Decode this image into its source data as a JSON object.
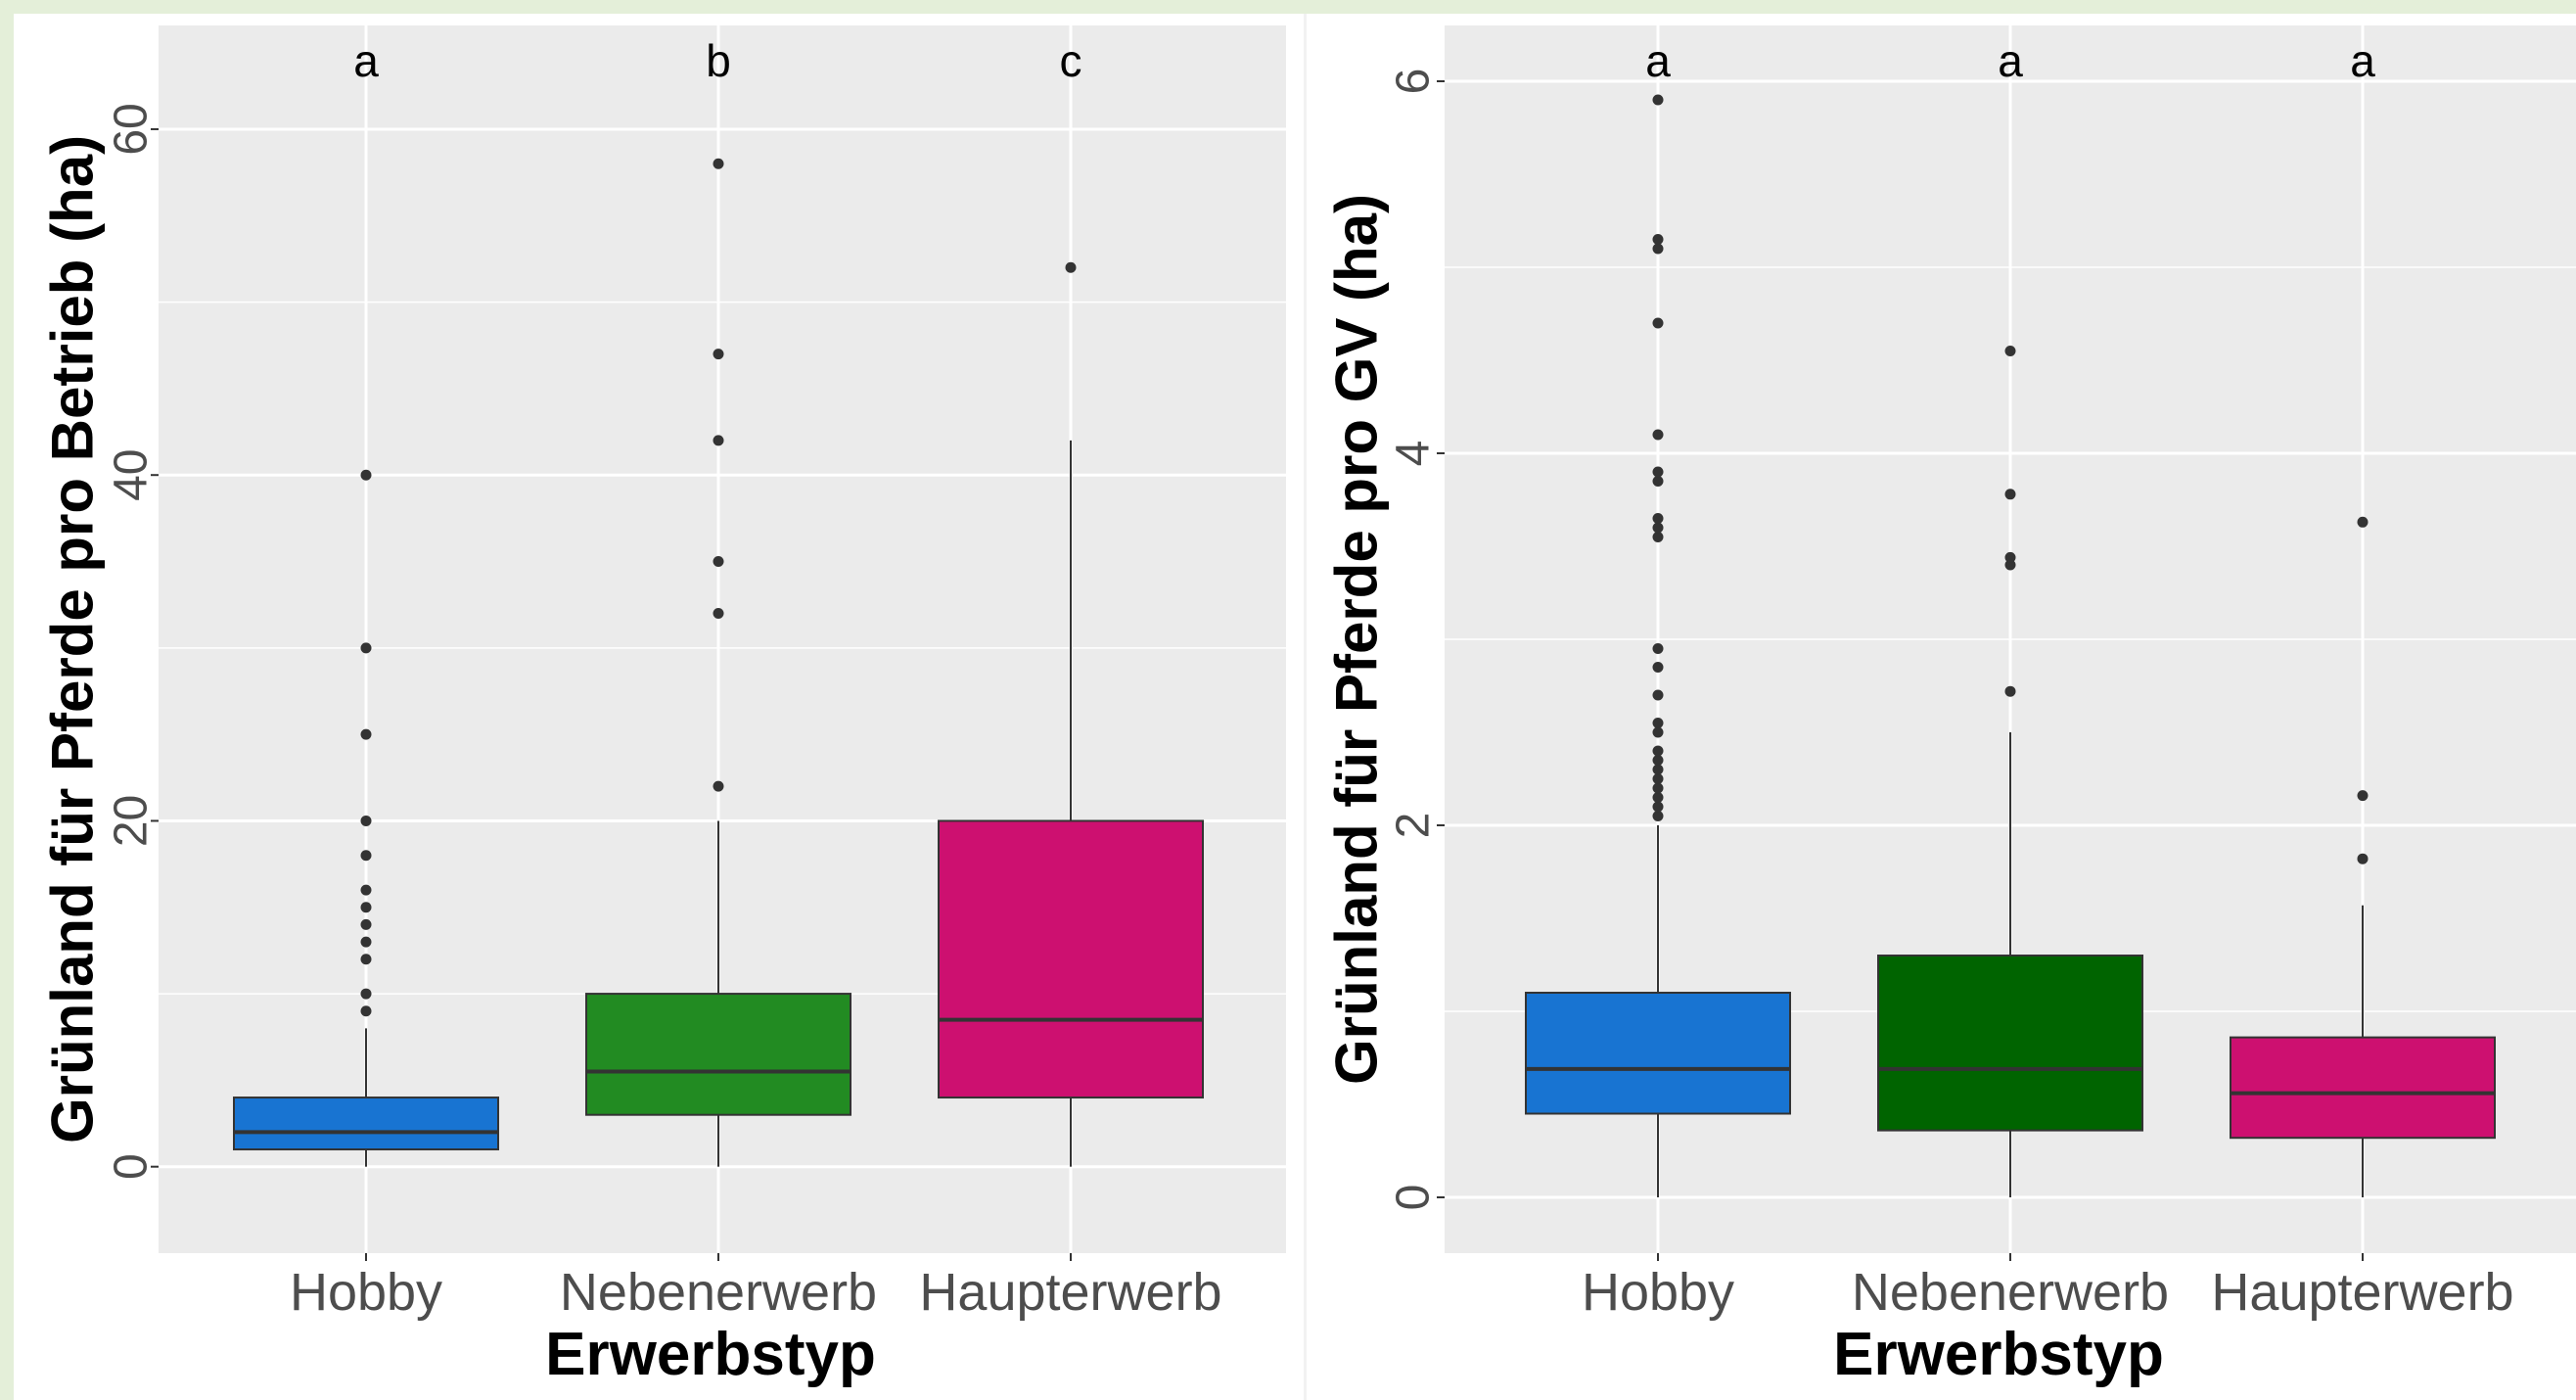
{
  "chart_data": [
    {
      "type": "boxplot",
      "title": "",
      "xlabel": "Erwerbstyp",
      "ylabel": "Grünland für Pferde pro Betrieb (ha)",
      "ylim": [
        -5,
        66
      ],
      "yticks": [
        0,
        20,
        40,
        60
      ],
      "grid": true,
      "categories": [
        "Hobby",
        "Nebenerwerb",
        "Haupterwerb"
      ],
      "group_letters": [
        "a",
        "b",
        "c"
      ],
      "colors": [
        "#1874d2",
        "#228b22",
        "#cd1070"
      ],
      "boxes": [
        {
          "category": "Hobby",
          "whisker_low": 0,
          "q1": 1,
          "median": 2,
          "q3": 4,
          "whisker_high": 8,
          "outliers": [
            9,
            10,
            12,
            13,
            14,
            15,
            16,
            18,
            20,
            25,
            30,
            40
          ]
        },
        {
          "category": "Nebenerwerb",
          "whisker_low": 0,
          "q1": 3,
          "median": 5.5,
          "q3": 10,
          "whisker_high": 20,
          "outliers": [
            22,
            32,
            35,
            42,
            47,
            58
          ]
        },
        {
          "category": "Haupterwerb",
          "whisker_low": 0,
          "q1": 4,
          "median": 8.5,
          "q3": 20,
          "whisker_high": 42,
          "outliers": [
            52
          ]
        }
      ]
    },
    {
      "type": "boxplot",
      "title": "",
      "xlabel": "Erwerbstyp",
      "ylabel": "Grünland für Pferde pro GV (ha)",
      "ylim": [
        -0.3,
        6.3
      ],
      "yticks": [
        0,
        2,
        4,
        6
      ],
      "grid": true,
      "categories": [
        "Hobby",
        "Nebenerwerb",
        "Haupterwerb"
      ],
      "group_letters": [
        "a",
        "a",
        "a"
      ],
      "colors": [
        "#1874d2",
        "#006400",
        "#cd1070"
      ],
      "boxes": [
        {
          "category": "Hobby",
          "whisker_low": 0,
          "q1": 0.45,
          "median": 0.69,
          "q3": 1.1,
          "whisker_high": 2.0,
          "outliers": [
            2.05,
            2.1,
            2.15,
            2.2,
            2.25,
            2.3,
            2.35,
            2.4,
            2.5,
            2.55,
            2.7,
            2.85,
            2.95,
            3.55,
            3.6,
            3.65,
            3.85,
            3.9,
            4.1,
            4.7,
            5.1,
            5.15,
            5.9
          ]
        },
        {
          "category": "Nebenerwerb",
          "whisker_low": 0,
          "q1": 0.36,
          "median": 0.69,
          "q3": 1.3,
          "whisker_high": 2.5,
          "outliers": [
            2.72,
            3.4,
            3.44,
            3.78,
            4.55
          ]
        },
        {
          "category": "Haupterwerb",
          "whisker_low": 0,
          "q1": 0.32,
          "median": 0.56,
          "q3": 0.86,
          "whisker_high": 1.57,
          "outliers": [
            1.82,
            2.16,
            3.63
          ]
        }
      ]
    }
  ]
}
